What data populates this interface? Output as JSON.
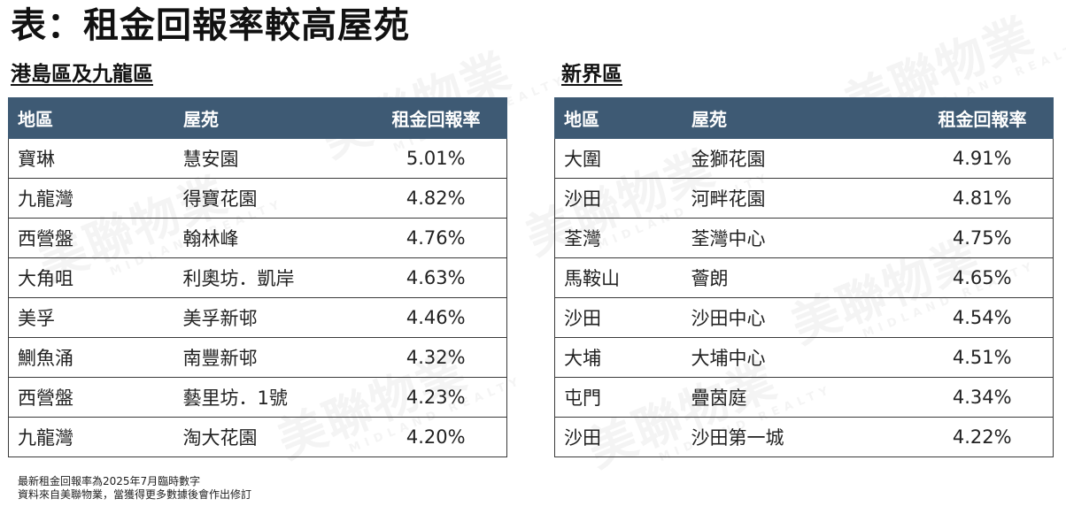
{
  "title": "表：租金回報率較高屋苑",
  "watermark": {
    "brand": "美聯物業",
    "brand_en": "MIDLAND REALTY"
  },
  "left_section": {
    "heading": "港島區及九龍區",
    "columns": [
      "地區",
      "屋苑",
      "租金回報率"
    ],
    "rows": [
      {
        "district": "寶琳",
        "estate": "慧安園",
        "rate": "5.01%"
      },
      {
        "district": "九龍灣",
        "estate": "得寶花園",
        "rate": "4.82%"
      },
      {
        "district": "西營盤",
        "estate": "翰林峰",
        "rate": "4.76%"
      },
      {
        "district": "大角咀",
        "estate": "利奧坊．凱岸",
        "rate": "4.63%"
      },
      {
        "district": "美孚",
        "estate": "美孚新邨",
        "rate": "4.46%"
      },
      {
        "district": "鰂魚涌",
        "estate": "南豐新邨",
        "rate": "4.32%"
      },
      {
        "district": "西營盤",
        "estate": "藝里坊．1號",
        "rate": "4.23%"
      },
      {
        "district": "九龍灣",
        "estate": "淘大花園",
        "rate": "4.20%"
      }
    ]
  },
  "right_section": {
    "heading": "新界區",
    "columns": [
      "地區",
      "屋苑",
      "租金回報率"
    ],
    "rows": [
      {
        "district": "大圍",
        "estate": "金獅花園",
        "rate": "4.91%"
      },
      {
        "district": "沙田",
        "estate": "河畔花園",
        "rate": "4.81%"
      },
      {
        "district": "荃灣",
        "estate": "荃灣中心",
        "rate": "4.75%"
      },
      {
        "district": "馬鞍山",
        "estate": "薈朗",
        "rate": "4.65%"
      },
      {
        "district": "沙田",
        "estate": "沙田中心",
        "rate": "4.54%"
      },
      {
        "district": "大埔",
        "estate": "大埔中心",
        "rate": "4.51%"
      },
      {
        "district": "屯門",
        "estate": "疊茵庭",
        "rate": "4.34%"
      },
      {
        "district": "沙田",
        "estate": "沙田第一城",
        "rate": "4.22%"
      }
    ]
  },
  "footnote": {
    "line1": "最新租金回報率為2025年7月臨時數字",
    "line2": "資料來自美聯物業，當獲得更多數據後會作出修訂"
  }
}
